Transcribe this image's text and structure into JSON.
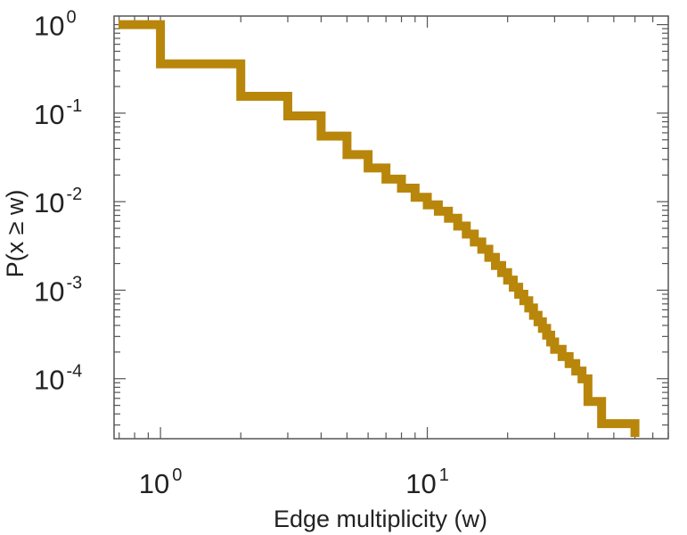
{
  "chart_data": {
    "type": "line",
    "step": true,
    "xlabel": "Edge multiplicity (w)",
    "ylabel": "P(x ≥ w)",
    "x_scale": "log",
    "y_scale": "log",
    "xlim": [
      0.67,
      80
    ],
    "ylim": [
      2.1e-05,
      1.25
    ],
    "grid": false,
    "x_ticks": [
      {
        "value": 1,
        "base": "10",
        "exp": "0"
      },
      {
        "value": 10,
        "base": "10",
        "exp": "1"
      }
    ],
    "y_ticks": [
      {
        "value": 1,
        "base": "10",
        "exp": "0"
      },
      {
        "value": 0.1,
        "base": "10",
        "exp": "-1"
      },
      {
        "value": 0.01,
        "base": "10",
        "exp": "-2"
      },
      {
        "value": 0.001,
        "base": "10",
        "exp": "-3"
      },
      {
        "value": 0.0001,
        "base": "10",
        "exp": "-4"
      }
    ],
    "series": [
      {
        "color": "#b8860b",
        "x": [
          1,
          2,
          3,
          4,
          5,
          6,
          7,
          8,
          9,
          10,
          11,
          12,
          13,
          14,
          15,
          16,
          17,
          18,
          19,
          20,
          21,
          22,
          23,
          24,
          25,
          26,
          27,
          28,
          29,
          30,
          32,
          34,
          36,
          38,
          40,
          45,
          50,
          60
        ],
        "y": [
          1.0,
          0.36,
          0.155,
          0.093,
          0.055,
          0.034,
          0.024,
          0.018,
          0.0142,
          0.0112,
          0.0092,
          0.0078,
          0.0065,
          0.0053,
          0.0043,
          0.0035,
          0.0029,
          0.00235,
          0.0019,
          0.00158,
          0.0013,
          0.00108,
          0.0009,
          0.00076,
          0.00063,
          0.00052,
          0.00044,
          0.00037,
          0.00031,
          0.00026,
          0.000215,
          0.000178,
          0.000148,
          0.000122,
          9.95e-05,
          5.53e-05,
          3.11e-05,
          3.11e-05
        ]
      }
    ]
  }
}
